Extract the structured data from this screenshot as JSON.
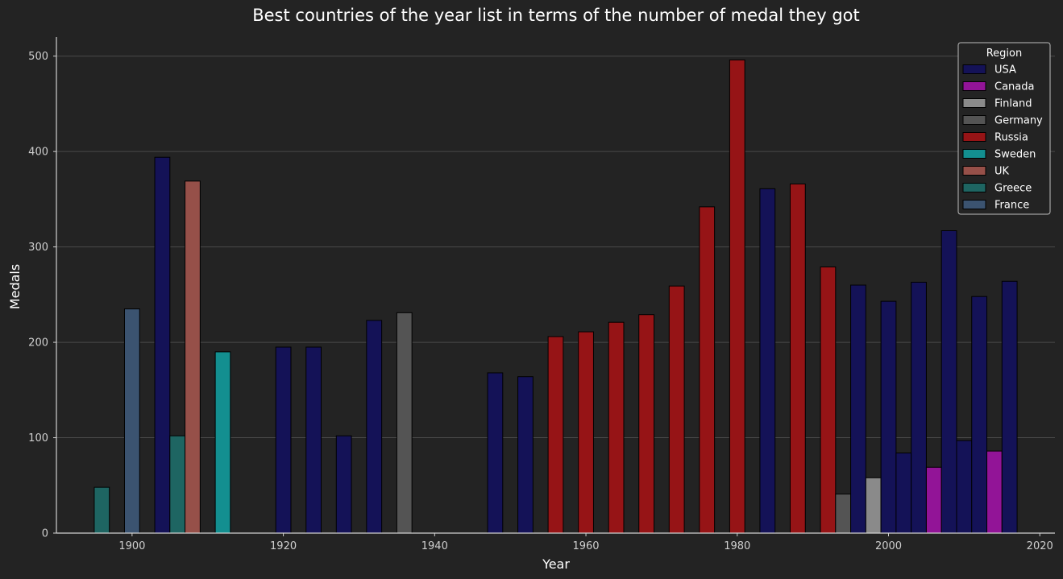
{
  "chart_data": {
    "type": "bar",
    "title": "Best countries of the year list in terms of the number of medal they got",
    "xlabel": "Year",
    "ylabel": "Medals",
    "xlim": [
      1890,
      2022
    ],
    "ylim": [
      0,
      520
    ],
    "xticks": [
      1900,
      1920,
      1940,
      1960,
      1980,
      2000,
      2020
    ],
    "yticks": [
      0,
      100,
      200,
      300,
      400,
      500
    ],
    "grid": true,
    "legend": {
      "title": "Region",
      "placement": "top-right",
      "entries": [
        "USA",
        "Canada",
        "Finland",
        "Germany",
        "Russia",
        "Sweden",
        "UK",
        "Greece",
        "France"
      ]
    },
    "colors": {
      "USA": "#141257",
      "Canada": "#921497",
      "Finland": "#8a8a8a",
      "Germany": "#545454",
      "Russia": "#961416",
      "Sweden": "#138f90",
      "UK": "#965049",
      "Greece": "#1e6562",
      "France": "#3b5370"
    },
    "bars": [
      {
        "year": 1896,
        "region": "Greece",
        "medals": 48
      },
      {
        "year": 1900,
        "region": "France",
        "medals": 235
      },
      {
        "year": 1904,
        "region": "USA",
        "medals": 394
      },
      {
        "year": 1906,
        "region": "Greece",
        "medals": 102
      },
      {
        "year": 1908,
        "region": "UK",
        "medals": 369
      },
      {
        "year": 1912,
        "region": "Sweden",
        "medals": 190
      },
      {
        "year": 1920,
        "region": "USA",
        "medals": 195
      },
      {
        "year": 1924,
        "region": "USA",
        "medals": 195
      },
      {
        "year": 1928,
        "region": "USA",
        "medals": 102
      },
      {
        "year": 1932,
        "region": "USA",
        "medals": 223
      },
      {
        "year": 1936,
        "region": "Germany",
        "medals": 231
      },
      {
        "year": 1948,
        "region": "USA",
        "medals": 168
      },
      {
        "year": 1952,
        "region": "USA",
        "medals": 164
      },
      {
        "year": 1956,
        "region": "Russia",
        "medals": 206
      },
      {
        "year": 1960,
        "region": "Russia",
        "medals": 211
      },
      {
        "year": 1964,
        "region": "Russia",
        "medals": 221
      },
      {
        "year": 1968,
        "region": "Russia",
        "medals": 229
      },
      {
        "year": 1972,
        "region": "Russia",
        "medals": 259
      },
      {
        "year": 1976,
        "region": "Russia",
        "medals": 342
      },
      {
        "year": 1980,
        "region": "Russia",
        "medals": 496
      },
      {
        "year": 1984,
        "region": "USA",
        "medals": 361
      },
      {
        "year": 1988,
        "region": "Russia",
        "medals": 366
      },
      {
        "year": 1992,
        "region": "Russia",
        "medals": 279
      },
      {
        "year": 1994,
        "region": "Germany",
        "medals": 41
      },
      {
        "year": 1996,
        "region": "USA",
        "medals": 260
      },
      {
        "year": 1998,
        "region": "Finland",
        "medals": 58
      },
      {
        "year": 2000,
        "region": "USA",
        "medals": 243
      },
      {
        "year": 2002,
        "region": "USA",
        "medals": 84
      },
      {
        "year": 2004,
        "region": "USA",
        "medals": 263
      },
      {
        "year": 2006,
        "region": "Canada",
        "medals": 69
      },
      {
        "year": 2008,
        "region": "USA",
        "medals": 317
      },
      {
        "year": 2010,
        "region": "USA",
        "medals": 97
      },
      {
        "year": 2012,
        "region": "USA",
        "medals": 248
      },
      {
        "year": 2014,
        "region": "Canada",
        "medals": 86
      },
      {
        "year": 2016,
        "region": "USA",
        "medals": 264
      }
    ]
  }
}
